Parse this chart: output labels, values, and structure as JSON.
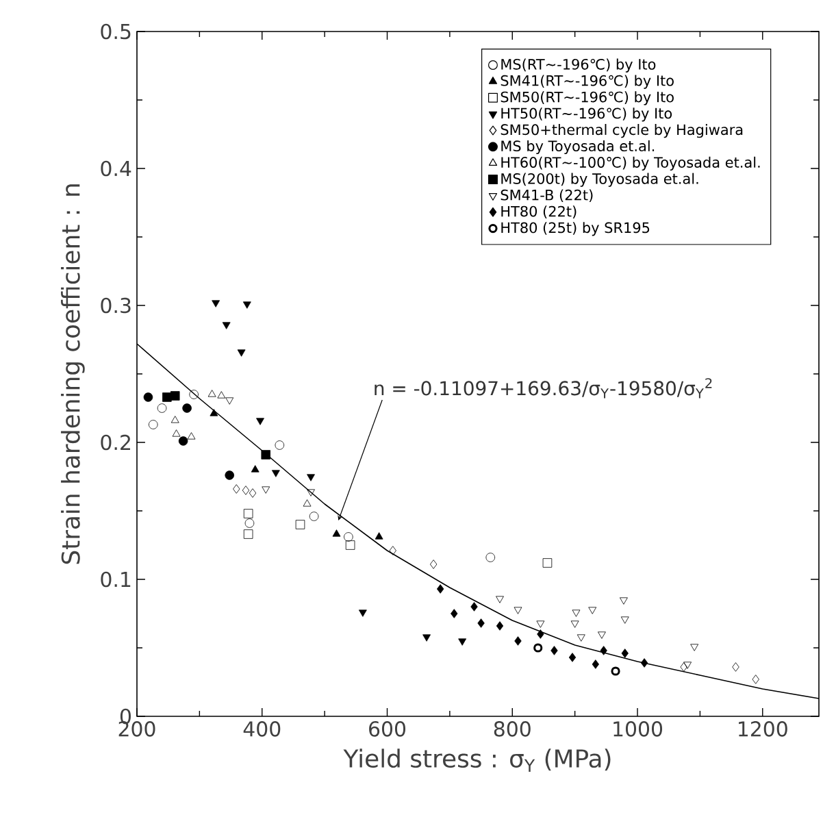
{
  "chart_data": {
    "type": "scatter",
    "xlabel": "Yield stress : σ$_{Y}$ (MPa)",
    "ylabel": "Strain hardening coefficient : n",
    "xlim": [
      200,
      1290
    ],
    "ylim": [
      0,
      0.5
    ],
    "xticks": [
      200,
      400,
      600,
      800,
      1000,
      1200
    ],
    "yticks": [
      0,
      0.1,
      0.2,
      0.3,
      0.4,
      0.5
    ],
    "grid": false,
    "legend": "top right",
    "annotations": [
      {
        "text": "n = -0.11097+169.63/σ$_{Y}$-19580/σ$_{Y}$$^{2}$",
        "x": 522,
        "y": 0.143
      }
    ],
    "series": [
      {
        "name": "MS(RT∼-196℃) by Ito",
        "color": "#000000",
        "marker": "circle",
        "x": [
          226,
          240,
          291,
          380,
          428,
          483,
          538,
          765
        ],
        "values": [
          0.213,
          0.225,
          0.235,
          0.141,
          0.198,
          0.146,
          0.131,
          0.116
        ]
      },
      {
        "name": "SM41(RT∼-196℃) by Ito",
        "color": "#000000",
        "marker": "triangle-filled",
        "x": [
          323,
          389,
          519,
          587
        ],
        "values": [
          0.221,
          0.18,
          0.133,
          0.131
        ]
      },
      {
        "name": "SM50(RT∼-196℃) by Ito",
        "color": "#000000",
        "marker": "square",
        "x": [
          378,
          378,
          461,
          541,
          856
        ],
        "values": [
          0.148,
          0.133,
          0.14,
          0.125,
          0.112
        ]
      },
      {
        "name": "HT50(RT∼-196℃) by Ito",
        "color": "#000000",
        "marker": "triangle-down-filled",
        "x": [
          326,
          376,
          343,
          367,
          397,
          422,
          478,
          561,
          663,
          720
        ],
        "values": [
          0.302,
          0.301,
          0.286,
          0.266,
          0.216,
          0.178,
          0.175,
          0.076,
          0.058,
          0.055
        ]
      },
      {
        "name": "SM50+thermal cycle by Hagiwara",
        "color": "#000000",
        "marker": "diamond",
        "x": [
          359,
          374,
          385,
          609,
          674,
          1074,
          1157,
          1189
        ],
        "values": [
          0.166,
          0.165,
          0.163,
          0.121,
          0.111,
          0.036,
          0.036,
          0.027
        ]
      },
      {
        "name": "MS by Toyosada et.al.",
        "color": "#000000",
        "marker": "circle-filled",
        "x": [
          218,
          274,
          280,
          348
        ],
        "values": [
          0.233,
          0.201,
          0.225,
          0.176
        ]
      },
      {
        "name": "HT60(RT∼-100℃) by Toyosada et.al.",
        "color": "#000000",
        "marker": "triangle",
        "x": [
          261,
          263,
          287,
          320,
          335,
          472
        ],
        "values": [
          0.216,
          0.206,
          0.204,
          0.235,
          0.234,
          0.155
        ]
      },
      {
        "name": "MS(200t) by Toyosada et.al.",
        "color": "#000000",
        "marker": "square-filled",
        "x": [
          248,
          261,
          406
        ],
        "values": [
          0.233,
          0.234,
          0.191
        ]
      },
      {
        "name": "SM41-B (22t)",
        "color": "#000000",
        "marker": "triangle-down",
        "x": [
          348,
          406,
          478,
          780,
          809,
          845,
          900,
          902,
          910,
          928,
          943,
          978,
          980,
          1080,
          1091
        ],
        "values": [
          0.231,
          0.166,
          0.164,
          0.086,
          0.078,
          0.068,
          0.068,
          0.076,
          0.058,
          0.078,
          0.06,
          0.085,
          0.071,
          0.038,
          0.051
        ]
      },
      {
        "name": "HT80 (22t)",
        "color": "#000000",
        "marker": "diamond-filled",
        "x": [
          685,
          707,
          739,
          750,
          780,
          809,
          845,
          867,
          896,
          933,
          946,
          980,
          1011
        ],
        "values": [
          0.093,
          0.075,
          0.08,
          0.068,
          0.066,
          0.055,
          0.06,
          0.048,
          0.043,
          0.038,
          0.048,
          0.046,
          0.039
        ]
      },
      {
        "name": "HT80 (25t) by SR195",
        "color": "#000000",
        "marker": "circle-bold",
        "x": [
          841,
          965
        ],
        "values": [
          0.05,
          0.033
        ]
      },
      {
        "type": "line",
        "color": "#000000",
        "marker": "none",
        "line_style": "solid",
        "x": [
          200,
          300,
          400,
          500,
          600,
          700,
          800,
          900,
          1000,
          1100,
          1200,
          1290
        ],
        "values": [
          0.272,
          0.232,
          0.194,
          0.155,
          0.121,
          0.094,
          0.07,
          0.052,
          0.04,
          0.03,
          0.02,
          0.013
        ]
      }
    ]
  }
}
